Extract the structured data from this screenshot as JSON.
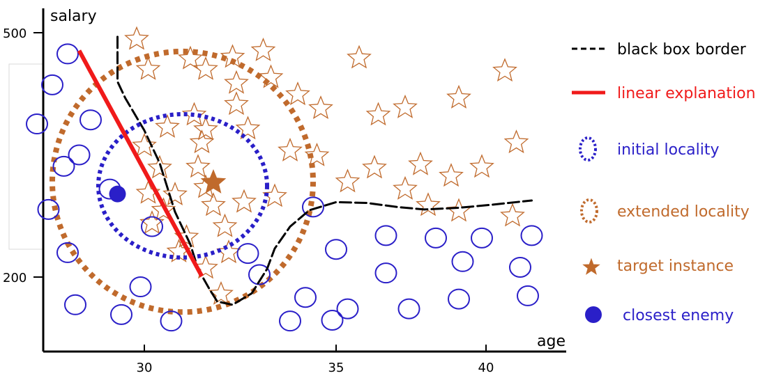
{
  "chart_data": {
    "type": "scatter",
    "xlabel": "age",
    "ylabel": "salary",
    "x_ticks": [
      "30",
      "35",
      "40"
    ],
    "y_ticks": [
      "500",
      "200"
    ],
    "xlim": [
      27,
      42
    ],
    "ylim": [
      125,
      525
    ],
    "series": [
      {
        "name": "blue circles",
        "marker": "circle-outline",
        "color": "#2a1fc8",
        "points": [
          [
            28.0,
            474
          ],
          [
            27.6,
            436
          ],
          [
            27.2,
            388
          ],
          [
            28.6,
            393
          ],
          [
            28.3,
            350
          ],
          [
            29.1,
            308
          ],
          [
            27.5,
            283
          ],
          [
            28.0,
            230
          ],
          [
            30.2,
            262
          ],
          [
            27.9,
            336
          ],
          [
            29.9,
            188
          ],
          [
            28.2,
            166
          ],
          [
            29.4,
            154
          ],
          [
            30.7,
            146
          ],
          [
            33.8,
            146
          ],
          [
            34.9,
            147
          ],
          [
            32.7,
            229
          ],
          [
            33.0,
            203
          ],
          [
            34.4,
            286
          ],
          [
            35.0,
            234
          ],
          [
            36.3,
            251
          ],
          [
            36.3,
            205
          ],
          [
            37.6,
            248
          ],
          [
            38.8,
            248
          ],
          [
            40.1,
            251
          ],
          [
            38.3,
            219
          ],
          [
            39.8,
            212
          ],
          [
            34.2,
            175
          ],
          [
            35.3,
            161
          ],
          [
            36.9,
            161
          ],
          [
            38.2,
            173
          ],
          [
            40.0,
            177
          ]
        ]
      },
      {
        "name": "brown stars",
        "marker": "star-outline",
        "color": "#c06a2c",
        "points": [
          [
            29.8,
            492
          ],
          [
            30.1,
            455
          ],
          [
            31.2,
            468
          ],
          [
            31.6,
            455
          ],
          [
            32.3,
            470
          ],
          [
            32.4,
            438
          ],
          [
            33.1,
            478
          ],
          [
            33.3,
            445
          ],
          [
            34.0,
            424
          ],
          [
            34.6,
            407
          ],
          [
            31.3,
            399
          ],
          [
            32.4,
            412
          ],
          [
            31.6,
            381
          ],
          [
            30.6,
            384
          ],
          [
            31.5,
            365
          ],
          [
            30.0,
            361
          ],
          [
            31.4,
            335
          ],
          [
            32.7,
            382
          ],
          [
            33.8,
            355
          ],
          [
            30.4,
            334
          ],
          [
            31.6,
            310
          ],
          [
            30.8,
            301
          ],
          [
            30.1,
            303
          ],
          [
            31.8,
            288
          ],
          [
            32.6,
            292
          ],
          [
            30.2,
            266
          ],
          [
            30.5,
            282
          ],
          [
            31.1,
            249
          ],
          [
            32.1,
            262
          ],
          [
            33.4,
            299
          ],
          [
            30.9,
            231
          ],
          [
            31.6,
            211
          ],
          [
            32.2,
            230
          ],
          [
            34.5,
            349
          ],
          [
            35.3,
            317
          ],
          [
            36.1,
            399
          ],
          [
            36.8,
            408
          ],
          [
            38.2,
            420
          ],
          [
            39.4,
            453
          ],
          [
            35.6,
            469
          ],
          [
            36.0,
            334
          ],
          [
            37.2,
            338
          ],
          [
            38.0,
            324
          ],
          [
            38.8,
            335
          ],
          [
            39.7,
            365
          ],
          [
            37.4,
            288
          ],
          [
            38.2,
            281
          ],
          [
            39.6,
            275
          ],
          [
            36.8,
            308
          ],
          [
            32.0,
            179
          ]
        ]
      }
    ],
    "target_instance": [
      31.8,
      316
    ],
    "closest_enemy": [
      29.3,
      302
    ],
    "linear_explanation": [
      [
        28.3,
        478
      ],
      [
        31.5,
        201
      ]
    ],
    "black_box_border": [
      [
        29.3,
        495
      ],
      [
        29.3,
        440
      ],
      [
        29.5,
        420
      ],
      [
        30.0,
        380
      ],
      [
        30.4,
        340
      ],
      [
        30.8,
        280
      ],
      [
        31.2,
        240
      ],
      [
        31.4,
        210
      ],
      [
        31.7,
        185
      ],
      [
        31.9,
        170
      ],
      [
        32.3,
        166
      ],
      [
        32.8,
        180
      ],
      [
        33.2,
        210
      ],
      [
        33.4,
        235
      ],
      [
        33.8,
        262
      ],
      [
        34.3,
        282
      ],
      [
        35.0,
        292
      ],
      [
        35.8,
        291
      ],
      [
        36.6,
        286
      ],
      [
        37.3,
        283
      ],
      [
        38.2,
        285
      ],
      [
        39.1,
        289
      ],
      [
        40.1,
        294
      ]
    ],
    "initial_locality": {
      "center": [
        31.0,
        312
      ],
      "radius_x": 2.2,
      "radius_y": 88
    },
    "extended_locality": {
      "center": [
        31.0,
        317
      ],
      "radius_x": 3.4,
      "radius_y": 160
    }
  },
  "legend": {
    "black_box_border": "black box border",
    "linear_explanation": "linear explanation",
    "initial_locality": "initial locality",
    "extended_locality": "extended locality",
    "target_instance": "target instance",
    "closest_enemy": "closest enemy"
  },
  "colors": {
    "blue": "#2a1fc8",
    "brown": "#c06a2c",
    "red": "#f01a1a",
    "black": "#000000",
    "light_gray_box": "#d8d8d8"
  }
}
